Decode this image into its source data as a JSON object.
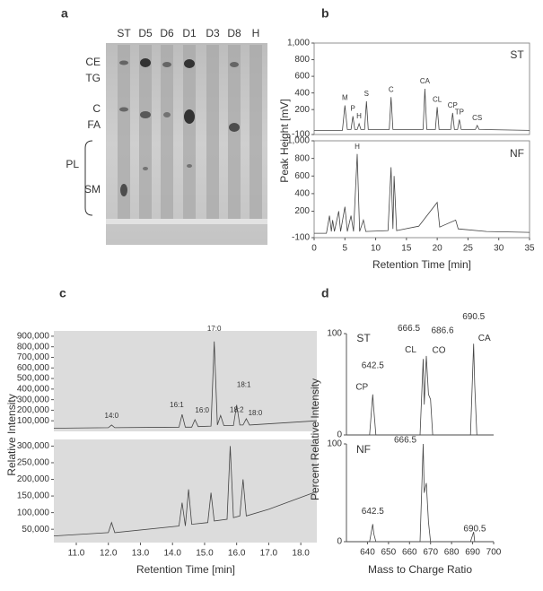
{
  "tlc_plate": {
    "panel": "a",
    "lanes": [
      "ST",
      "D5",
      "D6",
      "D1",
      "D3",
      "D8",
      "H"
    ],
    "bands": [
      "CE",
      "TG",
      "C",
      "FA",
      "SM"
    ],
    "group": "PL"
  },
  "chart_data": [
    {
      "type": "line",
      "panel": "b",
      "subtitle": "ST",
      "ylabel": "Peak Height [mV]",
      "x": [
        0,
        4.6,
        5,
        5.4,
        6,
        6.3,
        6.6,
        7,
        7.3,
        7.6,
        8.2,
        8.5,
        8.8,
        12.2,
        12.5,
        12.8,
        17.7,
        18,
        18.3,
        19.7,
        20,
        20.3,
        22.2,
        22.5,
        22.8,
        23.3,
        23.6,
        23.9,
        26.2,
        26.5,
        26.8,
        35
      ],
      "values": [
        -50,
        -50,
        250,
        -40,
        -40,
        120,
        -40,
        -40,
        30,
        -40,
        -40,
        300,
        -40,
        -40,
        350,
        -40,
        -40,
        450,
        -40,
        -40,
        230,
        -40,
        -40,
        160,
        -40,
        -40,
        80,
        -40,
        -40,
        10,
        -40,
        -50
      ],
      "annotations": [
        "M",
        "P",
        "H",
        "S",
        "C",
        "CA",
        "CL",
        "CP",
        "TP",
        "CS"
      ],
      "xlim": [
        0,
        35
      ],
      "ylim": [
        -100,
        1000
      ],
      "yticks": [
        -100,
        200,
        400,
        600,
        800,
        {
          "value": 1000,
          "label": "1,000"
        }
      ]
    },
    {
      "type": "line",
      "subtitle": "NF",
      "xlabel": "Retention Time [min]",
      "x": [
        0,
        2,
        2.5,
        2.8,
        3,
        3.3,
        4,
        4.3,
        5,
        5.4,
        6,
        6.4,
        7,
        7.4,
        8,
        8.4,
        12,
        12.5,
        12.8,
        13,
        13.4,
        17,
        20,
        20.4,
        23,
        23.4,
        28,
        35
      ],
      "values": [
        -50,
        -50,
        150,
        -30,
        100,
        -30,
        200,
        -30,
        250,
        -30,
        150,
        -30,
        850,
        -30,
        100,
        -30,
        -20,
        700,
        0,
        600,
        -20,
        30,
        300,
        20,
        100,
        0,
        -30,
        -40
      ],
      "annotations": [
        "H"
      ],
      "xlim": [
        0,
        35
      ],
      "ylim": [
        -100,
        1000
      ],
      "xticks": [
        0,
        5,
        10,
        15,
        20,
        25,
        30,
        35
      ],
      "yticks": [
        -100,
        200,
        400,
        600,
        800,
        {
          "value": 1000,
          "label": "1,000"
        }
      ]
    },
    {
      "type": "line",
      "panel": "c",
      "ylabel": "Relative Intensity",
      "x": [
        10.3,
        12,
        12.1,
        12.2,
        14.2,
        14.3,
        14.4,
        14.6,
        14.7,
        14.8,
        15.2,
        15.3,
        15.4,
        15.5,
        15.6,
        15.9,
        16,
        16.1,
        16.2,
        16.3,
        16.4,
        18.5
      ],
      "values": [
        30000,
        35000,
        60000,
        35000,
        40000,
        160000,
        40000,
        40000,
        110000,
        45000,
        50000,
        850000,
        60000,
        150000,
        55000,
        55000,
        250000,
        60000,
        60000,
        120000,
        60000,
        100000
      ],
      "annotations": [
        "14:0",
        "16:1",
        "16:0",
        "17:0",
        "18:1",
        "18:2",
        "18:0"
      ],
      "xlim": [
        10.3,
        18.5
      ],
      "ylim": [
        0,
        950000
      ],
      "yticks": [
        {
          "value": 100000,
          "label": "100,000"
        },
        {
          "value": 200000,
          "label": "200,000"
        },
        {
          "value": 300000,
          "label": "300,000"
        },
        {
          "value": 400000,
          "label": "400,000"
        },
        {
          "value": 500000,
          "label": "500,000"
        },
        {
          "value": 600000,
          "label": "600,000"
        },
        {
          "value": 700000,
          "label": "700,000"
        },
        {
          "value": 800000,
          "label": "800,000"
        },
        {
          "value": 900000,
          "label": "900,000"
        }
      ]
    },
    {
      "type": "line",
      "xlabel": "Retention Time [min]",
      "x": [
        10.3,
        12,
        12.1,
        12.2,
        14.2,
        14.3,
        14.4,
        14.5,
        14.6,
        15.1,
        15.2,
        15.3,
        15.7,
        15.8,
        15.9,
        16.1,
        16.2,
        16.3,
        17,
        18.4
      ],
      "values": [
        30000,
        40000,
        70000,
        40000,
        60000,
        130000,
        60000,
        170000,
        65000,
        70000,
        160000,
        75000,
        80000,
        300000,
        85000,
        90000,
        200000,
        90000,
        110000,
        160000
      ],
      "xlim": [
        10.3,
        18.5
      ],
      "ylim": [
        10000,
        320000
      ],
      "xticks": [
        {
          "value": 11,
          "label": "11.0"
        },
        {
          "value": 12,
          "label": "12.0"
        },
        {
          "value": 13,
          "label": "13.0"
        },
        {
          "value": 14,
          "label": "14.0"
        },
        {
          "value": 15,
          "label": "15.0"
        },
        {
          "value": 16,
          "label": "16.0"
        },
        {
          "value": 17,
          "label": "17.0"
        },
        {
          "value": 18,
          "label": "18.0"
        }
      ],
      "yticks": [
        {
          "value": 50000,
          "label": "50,000"
        },
        {
          "value": 100000,
          "label": "100,000"
        },
        {
          "value": 150000,
          "label": "150,000"
        },
        {
          "value": 200000,
          "label": "200,000"
        },
        {
          "value": 250000,
          "label": "250,000"
        },
        {
          "value": 300000,
          "label": "300,000"
        }
      ]
    },
    {
      "type": "line",
      "panel": "d",
      "subtitle": "ST",
      "ylabel": "Percent Relative Intensity",
      "x": [
        630,
        641,
        642.5,
        643,
        644,
        665,
        666.5,
        667,
        668,
        669,
        670,
        671,
        689,
        690.5,
        691,
        692,
        700
      ],
      "values": [
        0,
        0,
        40,
        25,
        0,
        0,
        75,
        30,
        78,
        40,
        35,
        0,
        0,
        90,
        50,
        0,
        0
      ],
      "annotations": [
        "642.5",
        "CP",
        "666.5",
        "CL",
        "686.6",
        "CO",
        "690.5",
        "CA"
      ],
      "xlim": [
        630,
        700
      ],
      "ylim": [
        0,
        100
      ],
      "yticks": [
        0,
        100
      ]
    },
    {
      "type": "line",
      "subtitle": "NF",
      "xlabel": "Mass to Charge Ratio",
      "x": [
        630,
        641,
        642.5,
        643,
        644,
        665,
        666.5,
        667,
        668,
        669,
        670,
        689,
        690.5,
        691,
        700
      ],
      "values": [
        0,
        0,
        18,
        8,
        0,
        0,
        100,
        50,
        60,
        20,
        0,
        0,
        10,
        0,
        0
      ],
      "annotations": [
        "642.5",
        "666.5",
        "690.5"
      ],
      "xlim": [
        630,
        700
      ],
      "ylim": [
        0,
        100
      ],
      "xticks": [
        640,
        650,
        660,
        670,
        680,
        690,
        700
      ],
      "yticks": [
        0,
        100
      ]
    }
  ]
}
